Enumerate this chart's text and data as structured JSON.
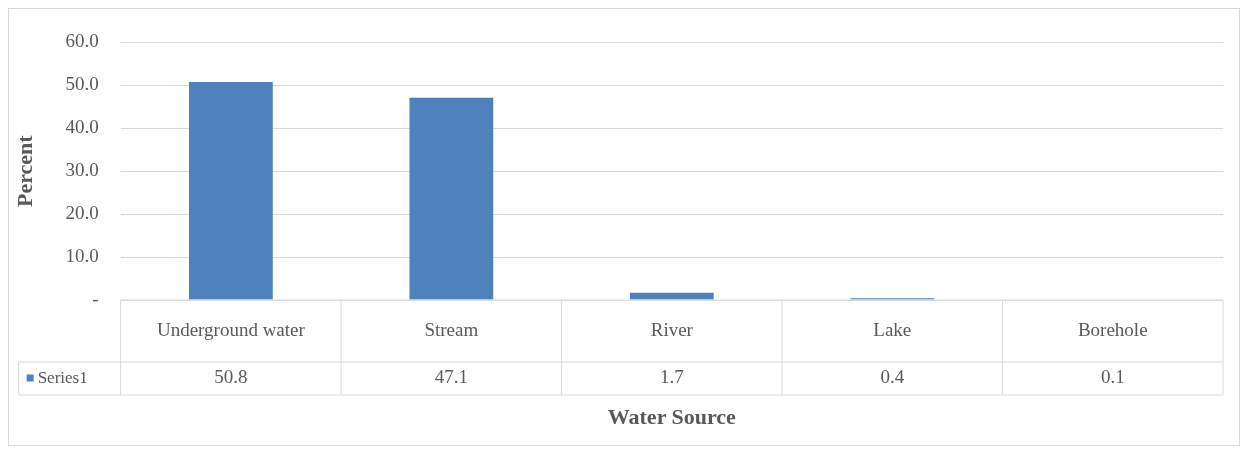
{
  "chart_data": {
    "type": "bar",
    "xlabel": "Water Source",
    "ylabel": "Percent",
    "categories": [
      "Underground water",
      "Stream",
      "River",
      "Lake",
      "Borehole"
    ],
    "series": [
      {
        "name": "Series1",
        "color": "#4f81bd",
        "values": [
          50.8,
          47.1,
          1.7,
          0.4,
          0.1
        ]
      }
    ],
    "ylim": [
      0,
      60
    ],
    "yticks": [
      {
        "value": 0,
        "label": "-"
      },
      {
        "value": 10,
        "label": "10.0"
      },
      {
        "value": 20,
        "label": "20.0"
      },
      {
        "value": 30,
        "label": "30.0"
      },
      {
        "value": 40,
        "label": "40.0"
      },
      {
        "value": 50,
        "label": "50.0"
      },
      {
        "value": 60,
        "label": "60.0"
      }
    ],
    "grid": "y",
    "data_labels": true,
    "legend": "bottom left"
  }
}
